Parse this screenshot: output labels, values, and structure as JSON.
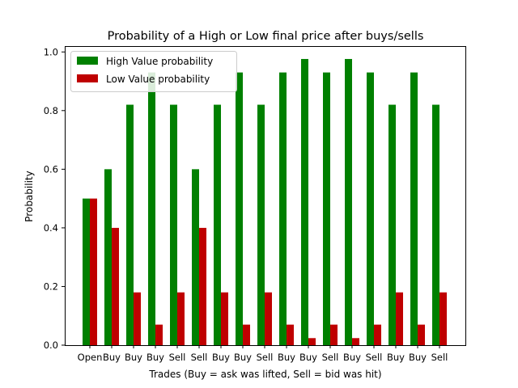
{
  "chart_data": {
    "type": "bar",
    "title": "Probability of a High or Low final price after buys/sells",
    "xlabel": "Trades (Buy = ask was lifted, Sell = bid was hit)",
    "ylabel": "Probability",
    "ylim": [
      0,
      1.02
    ],
    "yticks": [
      "0.0",
      "0.2",
      "0.4",
      "0.6",
      "0.8",
      "1.0"
    ],
    "categories": [
      "Open",
      "Buy",
      "Buy",
      "Buy",
      "Sell",
      "Sell",
      "Buy",
      "Buy",
      "Sell",
      "Buy",
      "Buy",
      "Sell",
      "Buy",
      "Sell",
      "Buy",
      "Buy",
      "Sell"
    ],
    "series": [
      {
        "name": "High Value probability",
        "color": "#008000",
        "values": [
          0.5,
          0.6,
          0.82,
          0.93,
          0.82,
          0.6,
          0.82,
          0.93,
          0.82,
          0.93,
          0.976,
          0.93,
          0.976,
          0.93,
          0.82,
          0.93,
          0.82
        ]
      },
      {
        "name": "Low Value probability",
        "color": "#bf0000",
        "values": [
          0.5,
          0.4,
          0.18,
          0.07,
          0.18,
          0.4,
          0.18,
          0.07,
          0.18,
          0.07,
          0.024,
          0.07,
          0.024,
          0.07,
          0.18,
          0.07,
          0.18
        ]
      }
    ],
    "grid": false,
    "legend_position": "top-left"
  }
}
